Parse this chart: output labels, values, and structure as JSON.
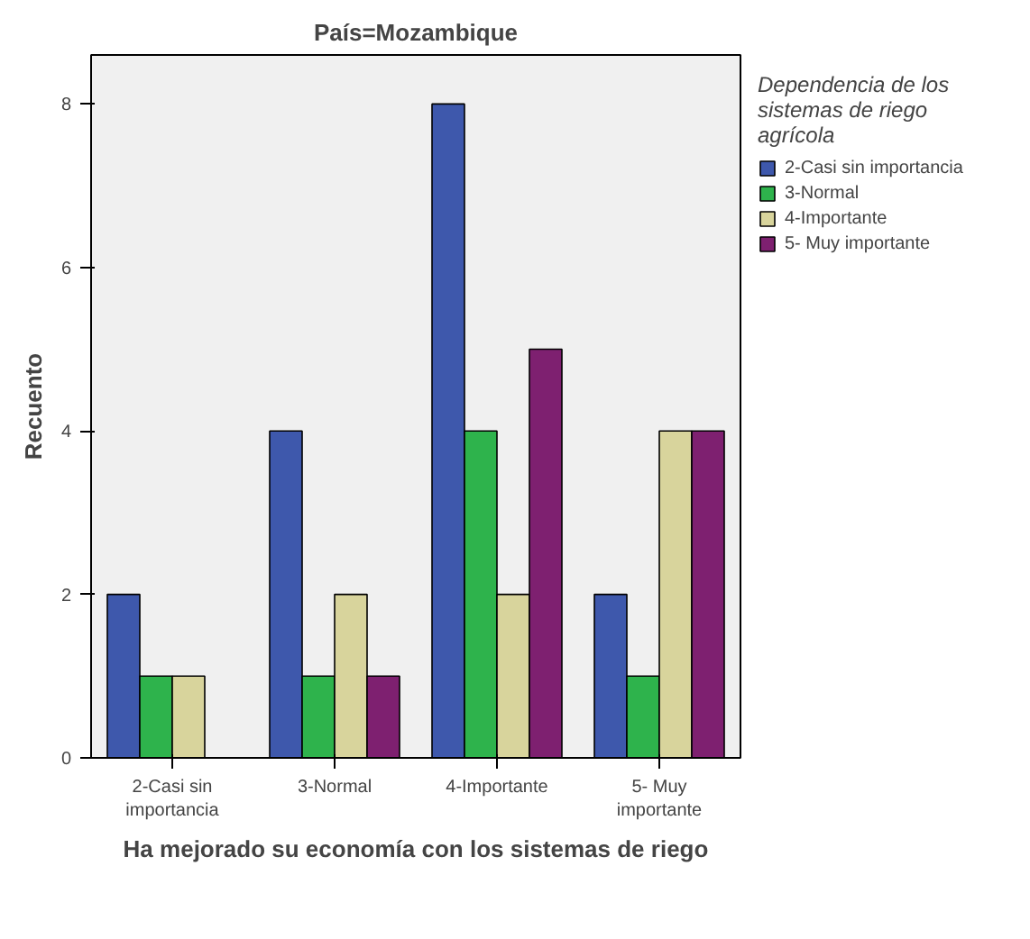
{
  "chart_data": {
    "type": "bar",
    "title": "País=Mozambique",
    "xlabel": "Ha mejorado su economía con los sistemas de riego",
    "ylabel": "Recuento",
    "legend_title": "Dependencia de los sistemas de riego agrícola",
    "categories": [
      "2-Casi sin importancia",
      "3-Normal",
      "4-Importante",
      "5- Muy importante"
    ],
    "series": [
      {
        "name": "2-Casi sin importancia",
        "color": "#3e58ac",
        "values": [
          2,
          4,
          8,
          2
        ]
      },
      {
        "name": "3-Normal",
        "color": "#2eb34c",
        "values": [
          1,
          1,
          4,
          1
        ]
      },
      {
        "name": "4-Importante",
        "color": "#d8d49c",
        "values": [
          1,
          2,
          2,
          4
        ]
      },
      {
        "name": "5- Muy importante",
        "color": "#7e2070",
        "values": [
          null,
          1,
          5,
          4
        ]
      }
    ],
    "ylim": [
      0,
      8.6
    ],
    "yticks": [
      0,
      2,
      4,
      6,
      8
    ],
    "grid": false,
    "legend": "right"
  }
}
